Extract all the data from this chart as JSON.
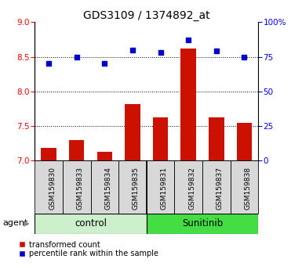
{
  "title": "GDS3109 / 1374892_at",
  "samples": [
    "GSM159830",
    "GSM159833",
    "GSM159834",
    "GSM159835",
    "GSM159831",
    "GSM159832",
    "GSM159837",
    "GSM159838"
  ],
  "red_values": [
    7.18,
    7.3,
    7.13,
    7.82,
    7.62,
    8.62,
    7.62,
    7.55
  ],
  "blue_pct": [
    70,
    75,
    70,
    80,
    78,
    87,
    79,
    75
  ],
  "groups": [
    {
      "label": "control",
      "start": 0,
      "end": 4,
      "color": "#ccf0cc"
    },
    {
      "label": "Sunitinib",
      "start": 4,
      "end": 8,
      "color": "#44dd44"
    }
  ],
  "ylim_left": [
    7.0,
    9.0
  ],
  "ylim_right": [
    0,
    100
  ],
  "yticks_left": [
    7.0,
    7.5,
    8.0,
    8.5,
    9.0
  ],
  "yticks_right": [
    0,
    25,
    50,
    75,
    100
  ],
  "ytick_labels_right": [
    "0",
    "25",
    "50",
    "75",
    "100%"
  ],
  "bar_bottom": 7.0,
  "bar_color": "#cc1100",
  "dot_color": "#0000cc",
  "sample_box_color": "#d8d8d8",
  "legend_red": "transformed count",
  "legend_blue": "percentile rank within the sample",
  "agent_label": "agent",
  "title_fontsize": 10,
  "tick_fontsize": 7.5,
  "sample_fontsize": 6.5
}
